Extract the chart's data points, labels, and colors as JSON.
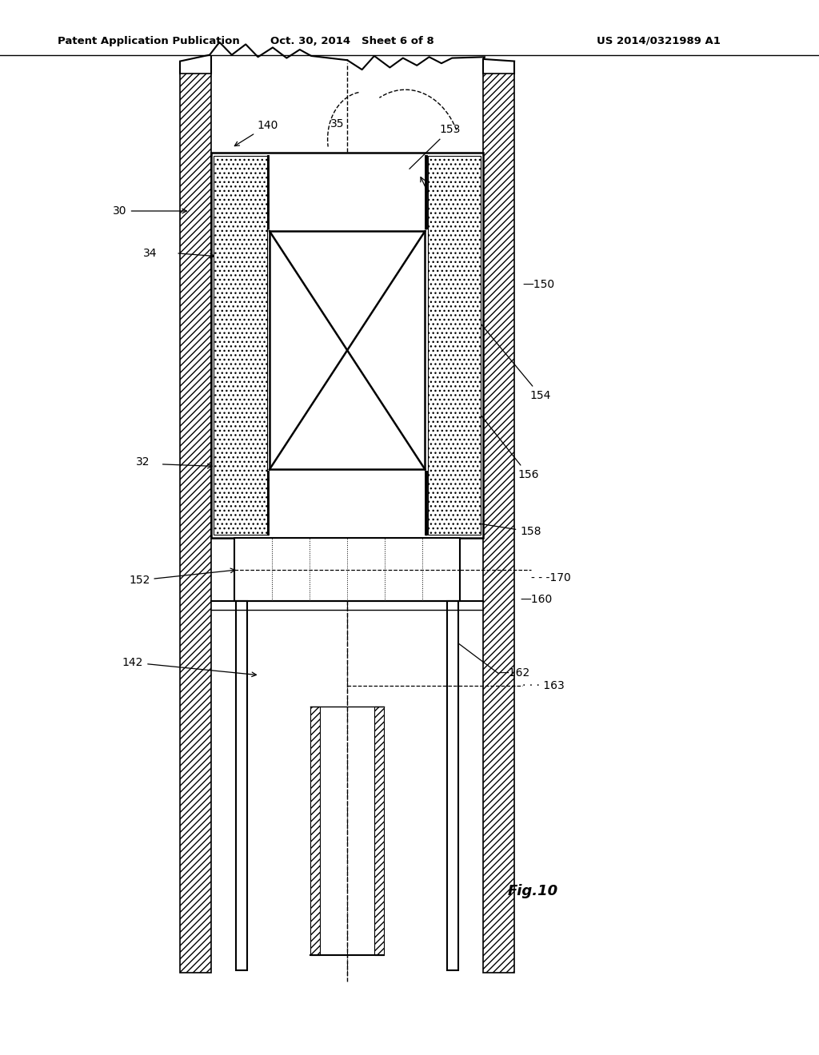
{
  "header_left": "Patent Application Publication",
  "header_mid": "Oct. 30, 2014   Sheet 6 of 8",
  "header_right": "US 2014/0321989 A1",
  "fig_label": "Fig.10",
  "bg_color": "#ffffff"
}
